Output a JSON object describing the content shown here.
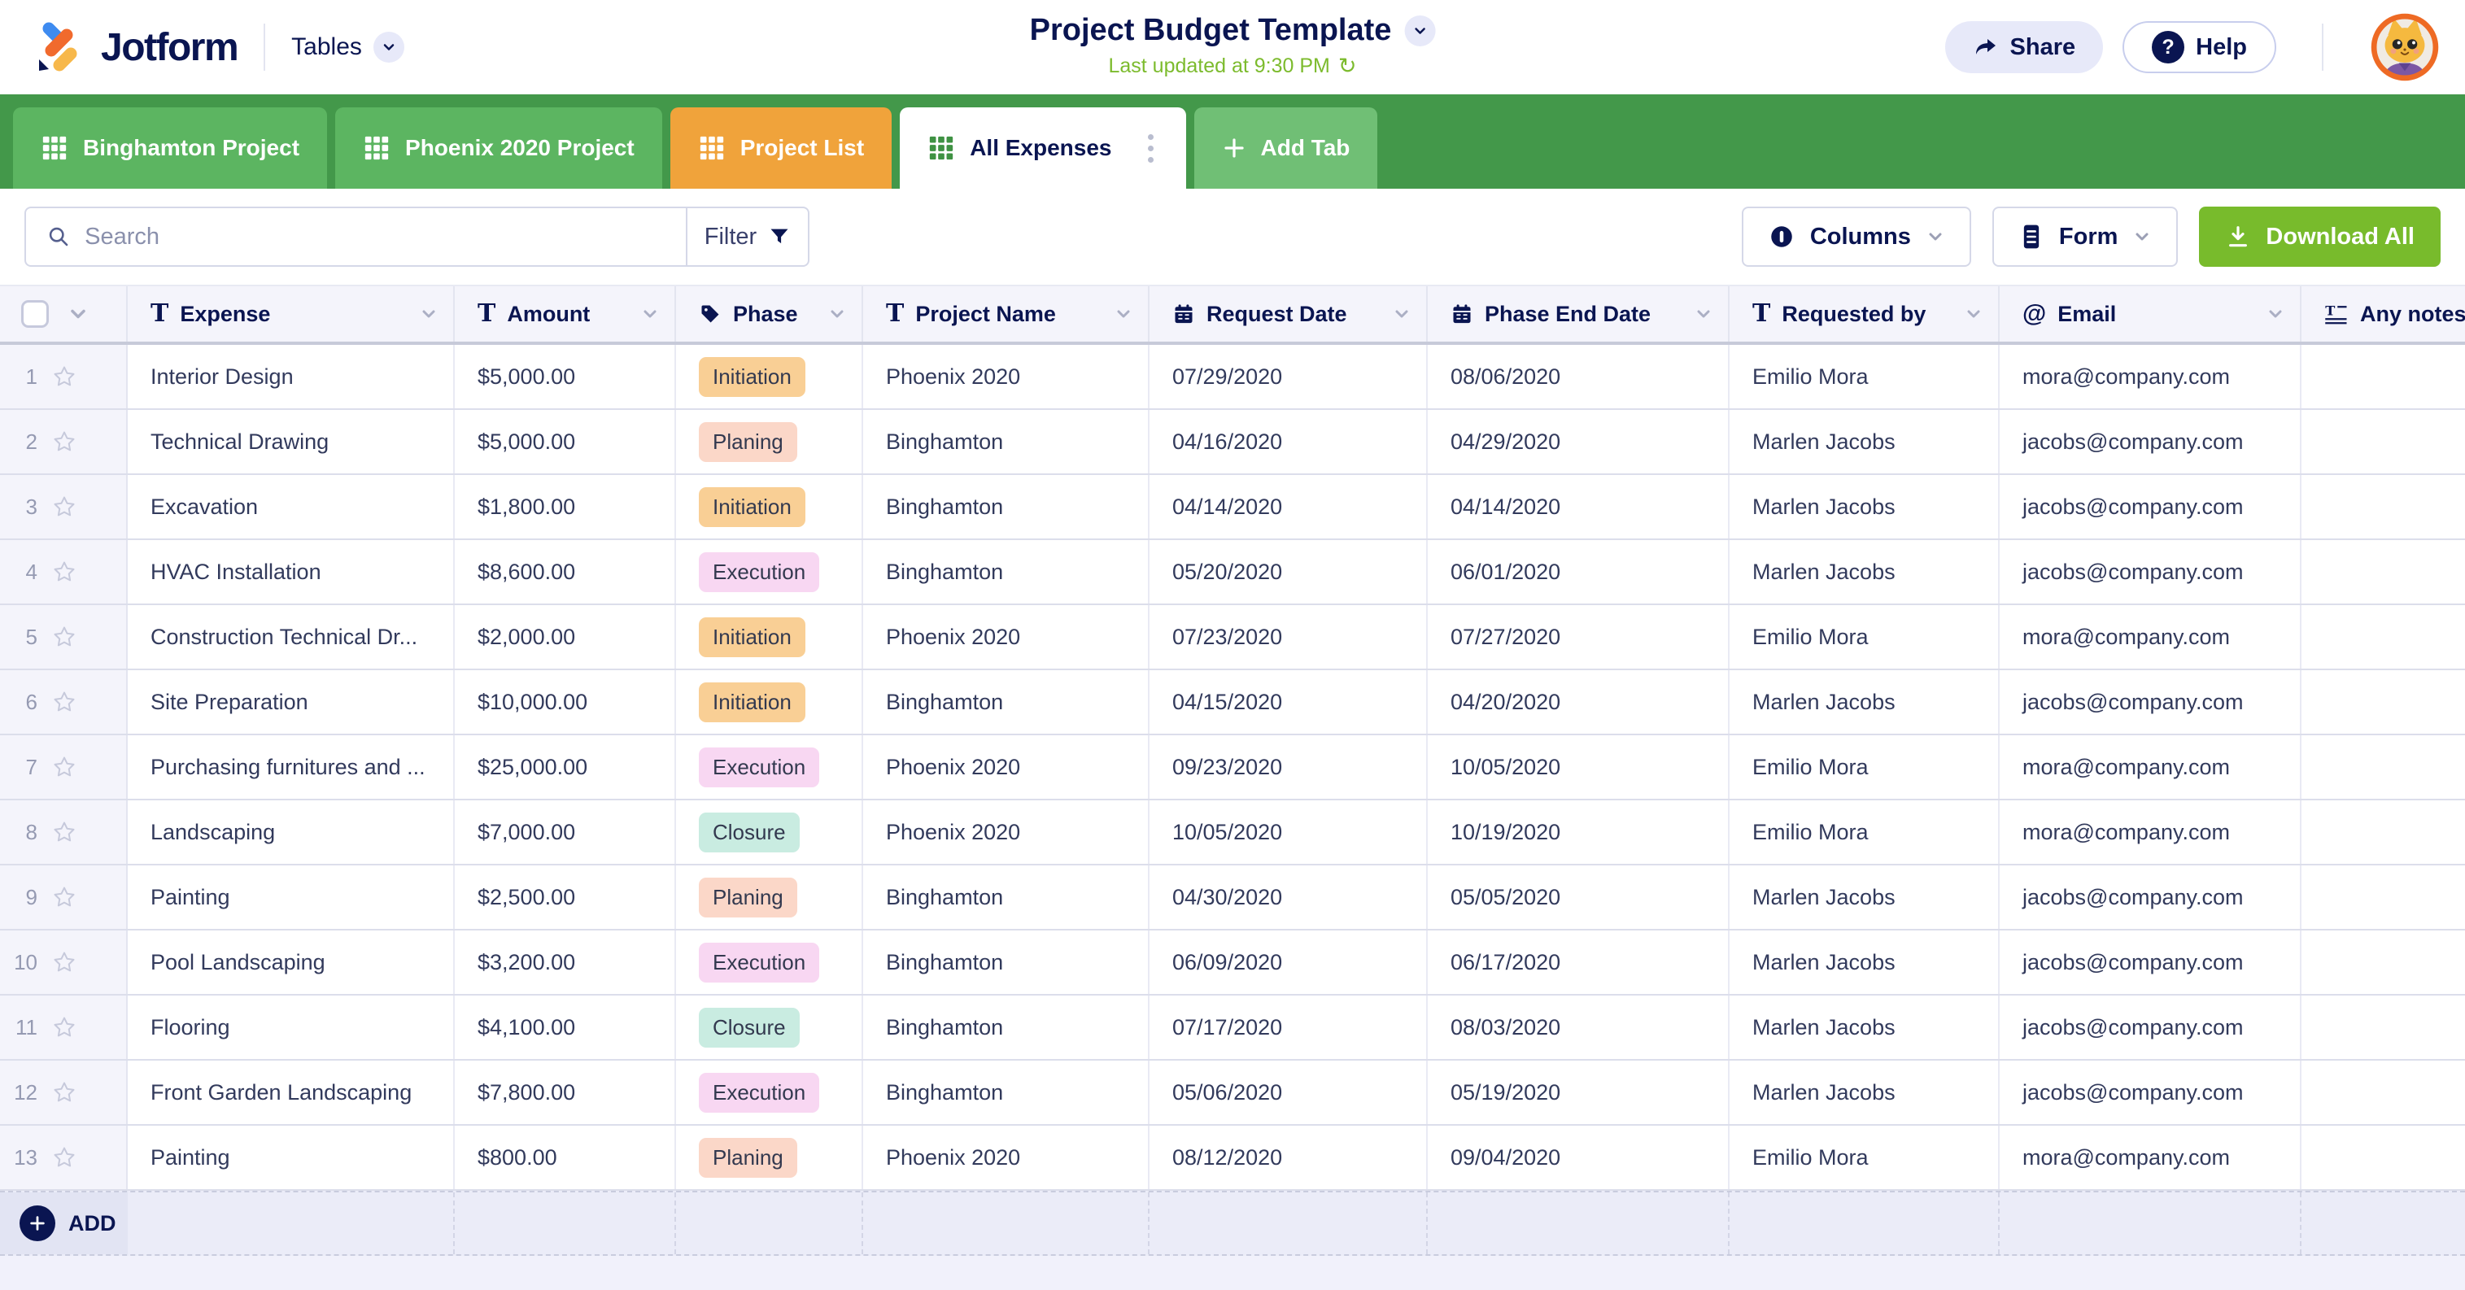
{
  "header": {
    "logo_text": "Jotform",
    "product": "Tables",
    "title": "Project Budget Template",
    "last_updated": "Last updated at 9:30 PM",
    "share_label": "Share",
    "help_label": "Help"
  },
  "tabs": [
    {
      "label": "Binghamton Project",
      "type": "sheet",
      "state": "green"
    },
    {
      "label": "Phoenix 2020 Project",
      "type": "sheet",
      "state": "green"
    },
    {
      "label": "Project List",
      "type": "sheet",
      "state": "orange"
    },
    {
      "label": "All Expenses",
      "type": "sheet",
      "state": "active"
    },
    {
      "label": "Add Tab",
      "type": "add",
      "state": "add"
    }
  ],
  "toolbar": {
    "search_placeholder": "Search",
    "filter_label": "Filter",
    "columns_label": "Columns",
    "form_label": "Form",
    "download_label": "Download All"
  },
  "table": {
    "columns": [
      {
        "label": "Expense",
        "icon": "text"
      },
      {
        "label": "Amount",
        "icon": "text"
      },
      {
        "label": "Phase",
        "icon": "tag"
      },
      {
        "label": "Project Name",
        "icon": "text"
      },
      {
        "label": "Request Date",
        "icon": "calendar"
      },
      {
        "label": "Phase End Date",
        "icon": "calendar"
      },
      {
        "label": "Requested by",
        "icon": "text"
      },
      {
        "label": "Email",
        "icon": "at"
      },
      {
        "label": "Any notes",
        "icon": "longtext"
      }
    ],
    "rows": [
      {
        "num": "1",
        "expense": "Interior Design",
        "amount": "$5,000.00",
        "phase": "Initiation",
        "project": "Phoenix 2020",
        "request_date": "07/29/2020",
        "phase_end_date": "08/06/2020",
        "requested_by": "Emilio Mora",
        "email": "mora@company.com",
        "notes": ""
      },
      {
        "num": "2",
        "expense": "Technical Drawing",
        "amount": "$5,000.00",
        "phase": "Planing",
        "project": "Binghamton",
        "request_date": "04/16/2020",
        "phase_end_date": "04/29/2020",
        "requested_by": "Marlen Jacobs",
        "email": "jacobs@company.com",
        "notes": ""
      },
      {
        "num": "3",
        "expense": "Excavation",
        "amount": "$1,800.00",
        "phase": "Initiation",
        "project": "Binghamton",
        "request_date": "04/14/2020",
        "phase_end_date": "04/14/2020",
        "requested_by": "Marlen Jacobs",
        "email": "jacobs@company.com",
        "notes": ""
      },
      {
        "num": "4",
        "expense": "HVAC Installation",
        "amount": "$8,600.00",
        "phase": "Execution",
        "project": "Binghamton",
        "request_date": "05/20/2020",
        "phase_end_date": "06/01/2020",
        "requested_by": "Marlen Jacobs",
        "email": "jacobs@company.com",
        "notes": ""
      },
      {
        "num": "5",
        "expense": "Construction Technical Dr...",
        "amount": "$2,000.00",
        "phase": "Initiation",
        "project": "Phoenix 2020",
        "request_date": "07/23/2020",
        "phase_end_date": "07/27/2020",
        "requested_by": "Emilio Mora",
        "email": "mora@company.com",
        "notes": ""
      },
      {
        "num": "6",
        "expense": "Site Preparation",
        "amount": "$10,000.00",
        "phase": "Initiation",
        "project": "Binghamton",
        "request_date": "04/15/2020",
        "phase_end_date": "04/20/2020",
        "requested_by": "Marlen Jacobs",
        "email": "jacobs@company.com",
        "notes": ""
      },
      {
        "num": "7",
        "expense": "Purchasing furnitures and ...",
        "amount": "$25,000.00",
        "phase": "Execution",
        "project": "Phoenix 2020",
        "request_date": "09/23/2020",
        "phase_end_date": "10/05/2020",
        "requested_by": "Emilio Mora",
        "email": "mora@company.com",
        "notes": ""
      },
      {
        "num": "8",
        "expense": "Landscaping",
        "amount": "$7,000.00",
        "phase": "Closure",
        "project": "Phoenix 2020",
        "request_date": "10/05/2020",
        "phase_end_date": "10/19/2020",
        "requested_by": "Emilio Mora",
        "email": "mora@company.com",
        "notes": ""
      },
      {
        "num": "9",
        "expense": "Painting",
        "amount": "$2,500.00",
        "phase": "Planing",
        "project": "Binghamton",
        "request_date": "04/30/2020",
        "phase_end_date": "05/05/2020",
        "requested_by": "Marlen Jacobs",
        "email": "jacobs@company.com",
        "notes": ""
      },
      {
        "num": "10",
        "expense": "Pool Landscaping",
        "amount": "$3,200.00",
        "phase": "Execution",
        "project": "Binghamton",
        "request_date": "06/09/2020",
        "phase_end_date": "06/17/2020",
        "requested_by": "Marlen Jacobs",
        "email": "jacobs@company.com",
        "notes": ""
      },
      {
        "num": "11",
        "expense": "Flooring",
        "amount": "$4,100.00",
        "phase": "Closure",
        "project": "Binghamton",
        "request_date": "07/17/2020",
        "phase_end_date": "08/03/2020",
        "requested_by": "Marlen Jacobs",
        "email": "jacobs@company.com",
        "notes": ""
      },
      {
        "num": "12",
        "expense": "Front Garden Landscaping",
        "amount": "$7,800.00",
        "phase": "Execution",
        "project": "Binghamton",
        "request_date": "05/06/2020",
        "phase_end_date": "05/19/2020",
        "requested_by": "Marlen Jacobs",
        "email": "jacobs@company.com",
        "notes": ""
      },
      {
        "num": "13",
        "expense": "Painting",
        "amount": "$800.00",
        "phase": "Planing",
        "project": "Phoenix 2020",
        "request_date": "08/12/2020",
        "phase_end_date": "09/04/2020",
        "requested_by": "Emilio Mora",
        "email": "mora@company.com",
        "notes": ""
      }
    ],
    "add_label": "ADD"
  },
  "colors": {
    "tab_bar": "#43984A",
    "tab_green": "#5CB561",
    "tab_orange": "#F0A33B",
    "download_green": "#78BB2C",
    "updated_green": "#7CBB2D",
    "navy": "#0A1551",
    "phase": {
      "Initiation": "#F9CF95",
      "Planing": "#FBD7C8",
      "Execution": "#F8D7F2",
      "Closure": "#C9ECE1"
    }
  }
}
